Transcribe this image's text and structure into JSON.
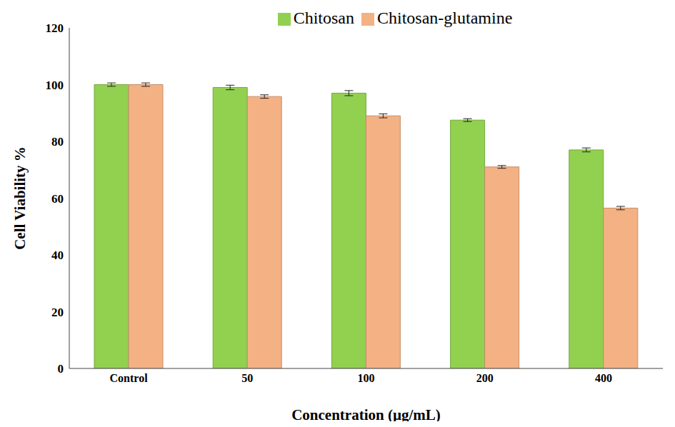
{
  "chart_data": {
    "type": "bar",
    "x_label": "Concentration (µg/mL)",
    "y_label": "Cell Viability %",
    "categories": [
      "Control",
      "50",
      "100",
      "200",
      "400"
    ],
    "series": [
      {
        "name": "Chitosan",
        "color": "#92d050",
        "values": [
          100,
          99,
          97,
          87.5,
          77
        ],
        "errors": [
          0.6,
          0.8,
          0.9,
          0.5,
          0.7
        ]
      },
      {
        "name": "Chitosan-glutamine",
        "color": "#f4b183",
        "values": [
          100,
          95.8,
          89,
          71,
          56.5
        ],
        "errors": [
          0.6,
          0.6,
          0.7,
          0.5,
          0.6
        ]
      }
    ],
    "ylim": [
      0,
      120
    ],
    "yticks": [
      0,
      20,
      40,
      60,
      80,
      100,
      120
    ],
    "grid": false,
    "legend": "top"
  }
}
